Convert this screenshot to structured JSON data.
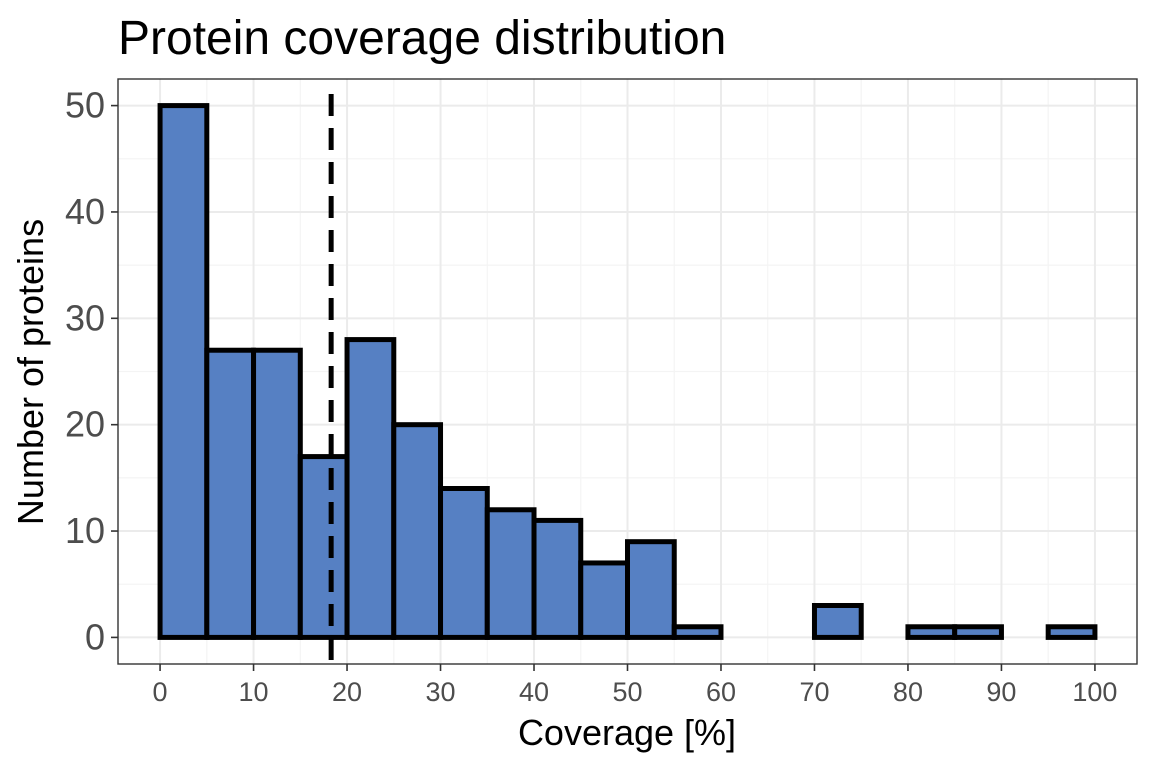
{
  "chart_data": {
    "type": "bar",
    "title": "Protein coverage distribution",
    "xlabel": "Coverage [%]",
    "ylabel": "Number of proteins",
    "bin_width": 5,
    "bins_start": [
      0,
      5,
      10,
      15,
      20,
      25,
      30,
      35,
      40,
      45,
      50,
      55,
      60,
      65,
      70,
      75,
      80,
      85,
      90,
      95
    ],
    "values": [
      50,
      27,
      27,
      17,
      28,
      20,
      14,
      12,
      11,
      7,
      9,
      1,
      0,
      0,
      3,
      0,
      1,
      1,
      0,
      1
    ],
    "xlim": [
      -4.5,
      104.5
    ],
    "ylim": [
      -2.5,
      52.5
    ],
    "xticks": [
      0,
      10,
      20,
      30,
      40,
      50,
      60,
      70,
      80,
      90,
      100
    ],
    "xtick_labels": [
      "0",
      "10",
      "20",
      "30",
      "40",
      "50",
      "60",
      "70",
      "80",
      "90",
      "100"
    ],
    "yticks": [
      0,
      10,
      20,
      30,
      40,
      50
    ],
    "ytick_labels": [
      "0",
      "10",
      "20",
      "30",
      "40",
      "50"
    ],
    "reference_line": {
      "x": 18.3,
      "style": "dashed"
    },
    "grid": true,
    "legend": "none",
    "colors": {
      "bar_fill": "#5680c3",
      "bar_outline": "#000000",
      "reference_line": "#000000"
    }
  }
}
